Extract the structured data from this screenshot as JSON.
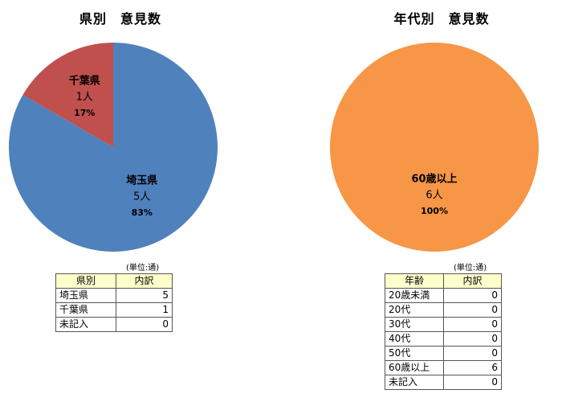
{
  "charts": [
    {
      "title": "県別　意見数",
      "unit": "(単位:通)",
      "headers": [
        "県別",
        "内訳"
      ],
      "rows": [
        {
          "label": "埼玉県",
          "value": "5"
        },
        {
          "label": "千葉県",
          "value": "1"
        },
        {
          "label": "未記入",
          "value": "0"
        }
      ]
    },
    {
      "title": "年代別　意見数",
      "unit": "(単位:通)",
      "headers": [
        "年齢",
        "内訳"
      ],
      "rows": [
        {
          "label": "20歳未満",
          "value": "0"
        },
        {
          "label": "20代",
          "value": "0"
        },
        {
          "label": "30代",
          "value": "0"
        },
        {
          "label": "40代",
          "value": "0"
        },
        {
          "label": "50代",
          "value": "0"
        },
        {
          "label": "60歳以上",
          "value": "6"
        },
        {
          "label": "未記入",
          "value": "0"
        }
      ]
    }
  ],
  "chart_data": [
    {
      "type": "pie",
      "title": "県別　意見数",
      "slices": [
        {
          "label": "埼玉県",
          "value_text": "5人",
          "percent_text": "83%",
          "value": 5,
          "color": "#4f81bd"
        },
        {
          "label": "千葉県",
          "value_text": "1人",
          "percent_text": "17%",
          "value": 1,
          "color": "#c0504d"
        }
      ]
    },
    {
      "type": "pie",
      "title": "年代別　意見数",
      "slices": [
        {
          "label": "60歳以上",
          "value_text": "6人",
          "percent_text": "100%",
          "value": 6,
          "color": "#f79646"
        }
      ]
    }
  ]
}
